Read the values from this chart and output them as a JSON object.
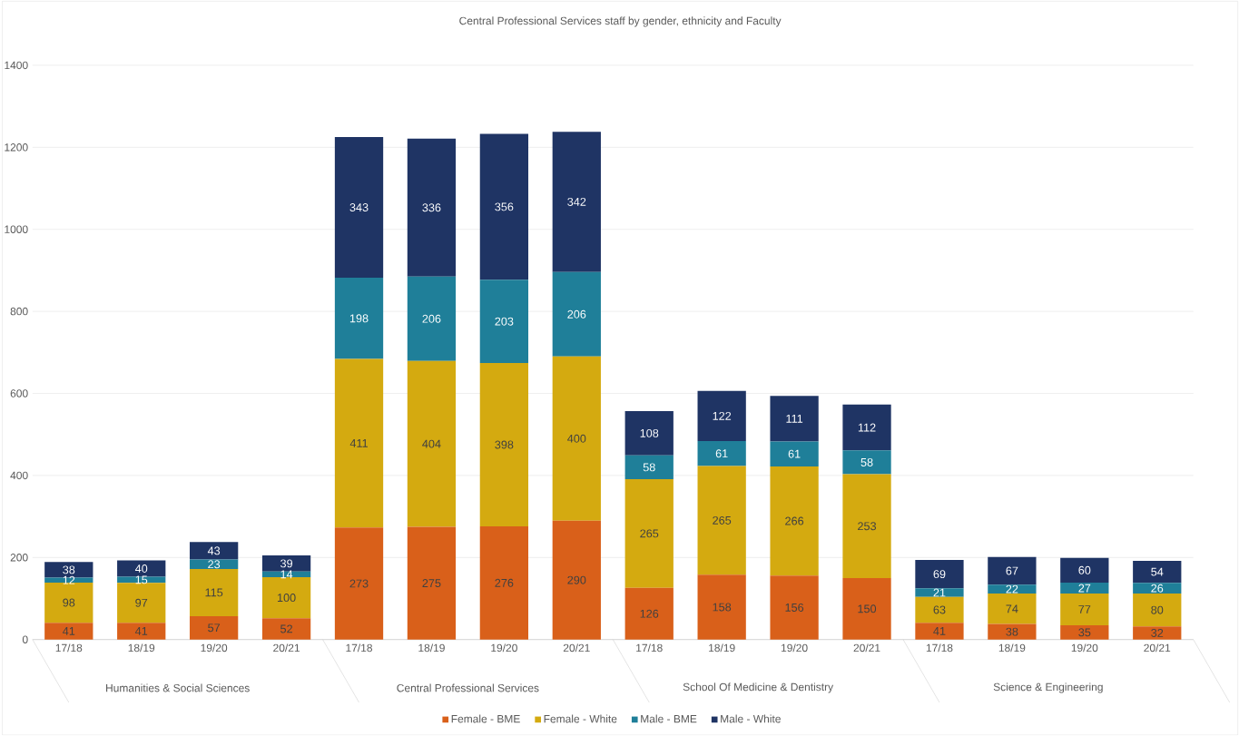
{
  "chart_data": {
    "type": "bar",
    "stacked": true,
    "title": "Central Professional Services staff by gender, ethnicity and Faculty",
    "categories": [
      "17/18",
      "18/19",
      "19/20",
      "20/21",
      "17/18",
      "18/19",
      "19/20",
      "20/21",
      "17/18",
      "18/19",
      "19/20",
      "20/21",
      "17/18",
      "18/19",
      "19/20",
      "20/21"
    ],
    "series": [
      {
        "name": "Female - BME",
        "color": "#d9601a",
        "values": [
          41,
          41,
          57,
          52,
          273,
          275,
          276,
          290,
          126,
          158,
          156,
          150,
          41,
          38,
          35,
          32
        ]
      },
      {
        "name": "Female - White",
        "color": "#d4aa10",
        "values": [
          98,
          97,
          115,
          100,
          411,
          404,
          398,
          400,
          265,
          265,
          266,
          253,
          63,
          74,
          77,
          80
        ]
      },
      {
        "name": "Male - BME",
        "color": "#1f7f99",
        "values": [
          12,
          15,
          23,
          14,
          198,
          206,
          203,
          206,
          58,
          61,
          61,
          58,
          21,
          22,
          27,
          26
        ]
      },
      {
        "name": "Male - White",
        "color": "#1f3464",
        "values": [
          38,
          40,
          43,
          39,
          343,
          336,
          356,
          342,
          108,
          122,
          111,
          112,
          69,
          67,
          60,
          54
        ]
      }
    ],
    "annotations": [
      "Humanities & Social Sciences",
      "Central Professional Services",
      "School Of Medicine & Dentistry",
      "Science & Engineering"
    ],
    "ylim": [
      0,
      1400
    ],
    "yticks": [
      0,
      200,
      400,
      600,
      800,
      1000,
      1200,
      1400
    ],
    "grid": "y",
    "legend": "bottom",
    "data_labels": true
  }
}
